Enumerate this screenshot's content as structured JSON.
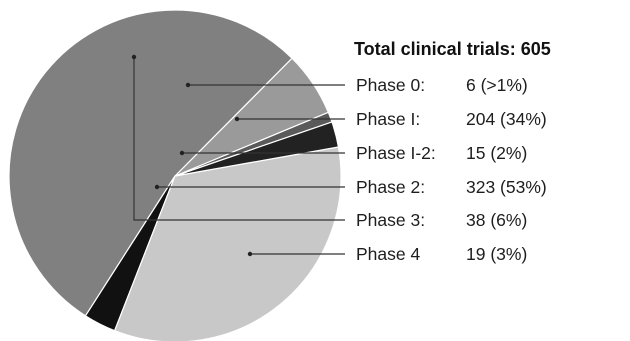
{
  "chart_data": {
    "type": "pie",
    "title": "Total clinical trials: 605",
    "start_angle_deg": -19,
    "direction": "counterclockwise",
    "legend_placement": "right",
    "slices": [
      {
        "name": "Phase 0:",
        "value": 6,
        "value_text": "6",
        "pct_text": "(>1%)",
        "color": "#5a5a5a"
      },
      {
        "name": "Phase 3:",
        "value": 38,
        "value_text": "38",
        "pct_text": "(6%)",
        "color": "#9a9a9a"
      },
      {
        "name": "Phase 2:",
        "value": 323,
        "value_text": "323",
        "pct_text": "(53%)",
        "color": "#808080"
      },
      {
        "name": "Phase 4",
        "value": 19,
        "value_text": "19",
        "pct_text": "(3%)",
        "color": "#111111"
      },
      {
        "name": "Phase I:",
        "value": 204,
        "value_text": "204",
        "pct_text": "(34%)",
        "color": "#c8c8c8"
      },
      {
        "name": "Phase I-2:",
        "value": 15,
        "value_text": "15",
        "pct_text": "(2%)",
        "color": "#222222"
      }
    ],
    "legend_order": [
      0,
      4,
      5,
      2,
      1,
      3
    ]
  }
}
